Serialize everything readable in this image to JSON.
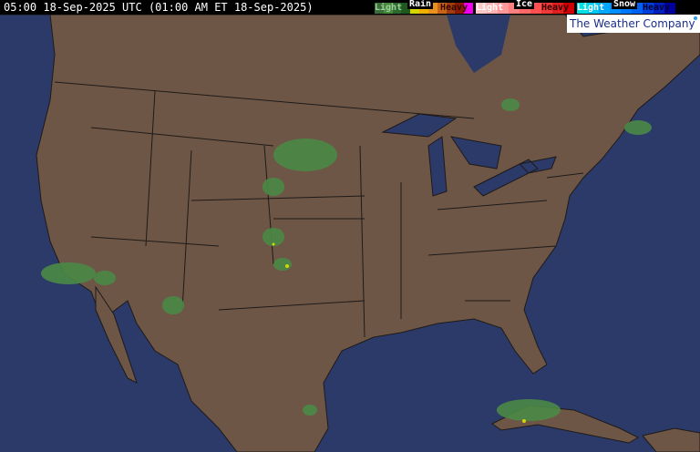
{
  "timestamp": "05:00 18-Sep-2025 UTC (01:00 AM ET 18-Sep-2025)",
  "legend": {
    "rain": {
      "title": "Rain",
      "light": "Light",
      "heavy": "Heavy",
      "colors": [
        "#3c6e3c",
        "#4a8a3c",
        "#2e6a2e",
        "#1e5a1e",
        "#d6d600",
        "#f0b000",
        "#e89020",
        "#c86418",
        "#a03c10",
        "#8a1a00",
        "#f000f0"
      ]
    },
    "ice": {
      "title": "Ice",
      "light": "Light",
      "heavy": "Heavy",
      "colors": [
        "#ffc8c8",
        "#ffb0b0",
        "#ff9898",
        "#ff8080",
        "#ff6868",
        "#ff5050",
        "#f03838",
        "#e02020",
        "#d00000"
      ]
    },
    "snow": {
      "title": "Snow",
      "light": "Light",
      "heavy": "Heavy",
      "colors": [
        "#00e0e0",
        "#00c8f0",
        "#00a8ff",
        "#0090ff",
        "#0078ff",
        "#0060f0",
        "#0040e0",
        "#0020c0",
        "#0000a0"
      ]
    }
  },
  "brand": "The Weather Company",
  "colors": {
    "land": "#6e5646",
    "water": "#2c3a6a",
    "border": "#1e1a18",
    "precip_light": "#4a8a46"
  }
}
